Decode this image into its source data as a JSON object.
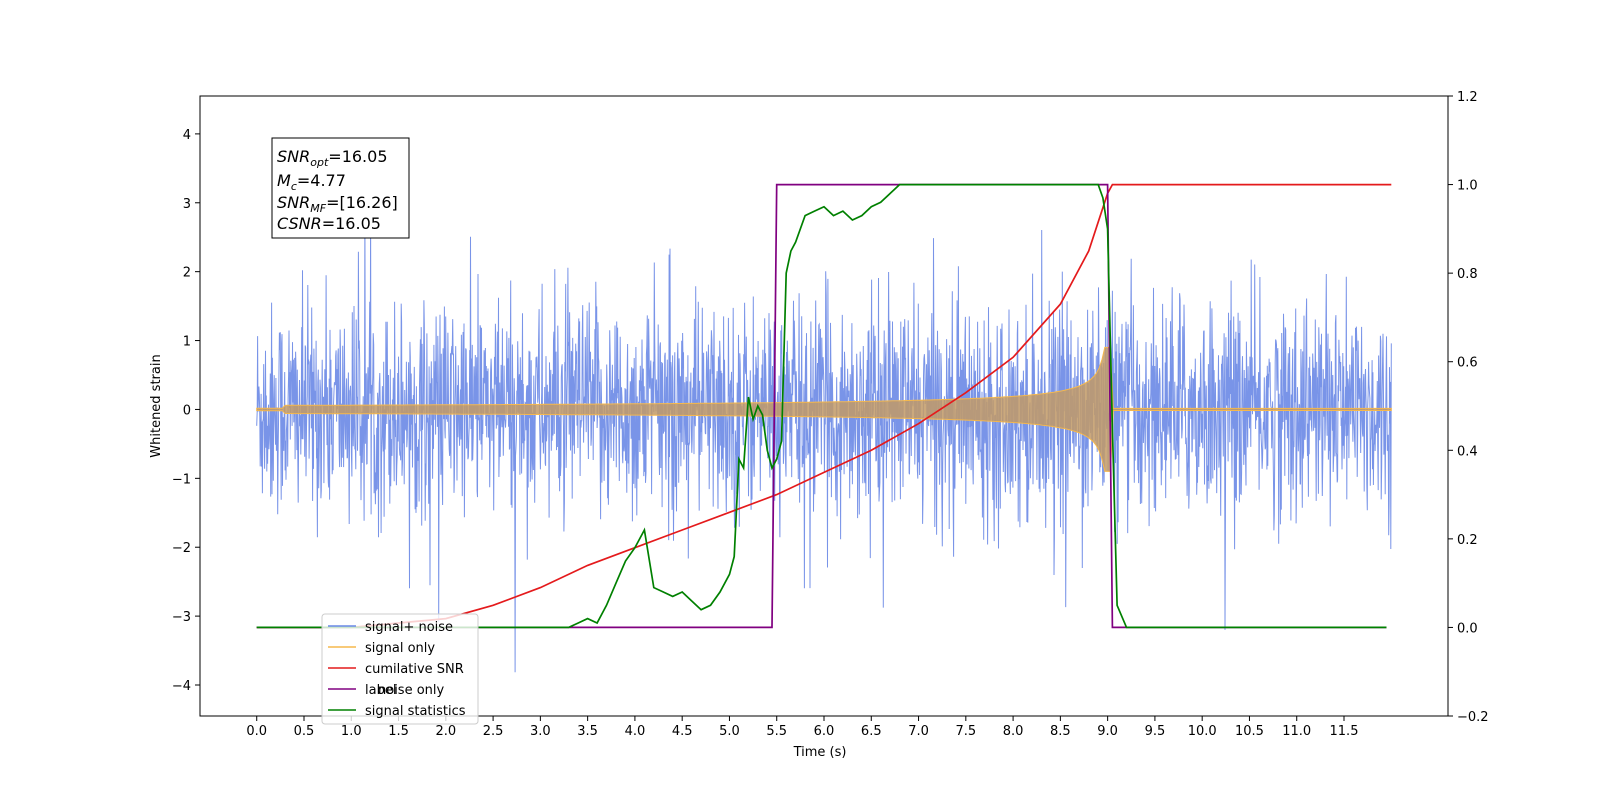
{
  "chart_data": {
    "type": "line",
    "xlabel": "Time (s)",
    "ylabel": "Whitened strain",
    "xlim": [
      -0.6,
      12.6
    ],
    "ylim": [
      -4.45,
      4.55
    ],
    "y2lim": [
      -0.2,
      1.2
    ],
    "x_ticks": [
      "0.0",
      "0.5",
      "1.0",
      "1.5",
      "2.0",
      "2.5",
      "3.0",
      "3.5",
      "4.0",
      "4.5",
      "5.0",
      "5.5",
      "6.0",
      "6.5",
      "7.0",
      "7.5",
      "8.0",
      "8.5",
      "9.0",
      "9.5",
      "10.0",
      "10.5",
      "11.0",
      "11.5"
    ],
    "y_ticks": [
      "4",
      "3",
      "2",
      "1",
      "0",
      "−1",
      "−2",
      "−3",
      "−4"
    ],
    "y2_ticks": [
      "1.2",
      "1.0",
      "0.8",
      "0.6",
      "0.4",
      "0.2",
      "0.0",
      "−0.2"
    ],
    "legend_placement": "lower-left",
    "annotation": {
      "snr_opt": {
        "main": "SNR",
        "sub": "opt",
        "value": "=16.05"
      },
      "mc": {
        "main": "M",
        "sub": "c",
        "value": "=4.77"
      },
      "snr_mf": {
        "main": "SNR",
        "sub": "MF",
        "value": "=[16.26]"
      },
      "csnr": {
        "main": "CSNR",
        "value": "=16.05"
      }
    },
    "series": [
      {
        "name": "signal+ noise",
        "color": "#6a88e6",
        "kind": "noise",
        "x_range": [
          0,
          12
        ],
        "sigma": 0.85
      },
      {
        "name": "signal only",
        "color": "#f5b84d",
        "kind": "chirp",
        "x_range": [
          0,
          12
        ],
        "merger": 9.0,
        "peak_amplitude": 0.9
      },
      {
        "name": "cumilative SNR",
        "color": "#e41a1c",
        "axis": "right",
        "x": [
          0.0,
          1.0,
          2.0,
          2.5,
          3.0,
          3.5,
          4.0,
          4.5,
          5.0,
          5.5,
          6.0,
          6.5,
          7.0,
          7.5,
          8.0,
          8.5,
          8.8,
          9.0,
          9.05,
          12.0
        ],
        "y": [
          0.0,
          0.0,
          0.02,
          0.05,
          0.09,
          0.14,
          0.18,
          0.22,
          0.26,
          0.3,
          0.35,
          0.4,
          0.46,
          0.53,
          0.61,
          0.73,
          0.85,
          0.98,
          1.0,
          1.0
        ]
      },
      {
        "name": "label",
        "color": "#800080",
        "axis": "right",
        "x": [
          0.0,
          5.45,
          5.5,
          9.0,
          9.05,
          11.95
        ],
        "y": [
          0.0,
          0.0,
          1.0,
          1.0,
          0.0,
          0.0
        ]
      },
      {
        "name": "noise only",
        "color": "#dddddd",
        "kind": "legend-only",
        "x": [],
        "y": []
      },
      {
        "name": "signal statistics",
        "color": "#008000",
        "axis": "right",
        "x": [
          0.0,
          3.3,
          3.4,
          3.5,
          3.6,
          3.7,
          3.8,
          3.9,
          4.0,
          4.1,
          4.2,
          4.3,
          4.4,
          4.5,
          4.6,
          4.7,
          4.8,
          4.9,
          5.0,
          5.05,
          5.1,
          5.15,
          5.2,
          5.25,
          5.3,
          5.35,
          5.4,
          5.45,
          5.5,
          5.55,
          5.6,
          5.65,
          5.7,
          5.8,
          5.9,
          6.0,
          6.1,
          6.2,
          6.3,
          6.4,
          6.5,
          6.6,
          6.7,
          6.8,
          6.9,
          7.0,
          7.5,
          8.0,
          8.5,
          8.85,
          8.9,
          8.95,
          9.0,
          9.05,
          9.1,
          9.2,
          11.95
        ],
        "y": [
          0.0,
          0.0,
          0.01,
          0.02,
          0.01,
          0.05,
          0.1,
          0.15,
          0.18,
          0.22,
          0.09,
          0.08,
          0.07,
          0.08,
          0.06,
          0.04,
          0.05,
          0.08,
          0.12,
          0.16,
          0.38,
          0.36,
          0.52,
          0.47,
          0.5,
          0.48,
          0.4,
          0.36,
          0.38,
          0.42,
          0.8,
          0.85,
          0.87,
          0.93,
          0.94,
          0.95,
          0.93,
          0.94,
          0.92,
          0.93,
          0.95,
          0.96,
          0.98,
          1.0,
          1.0,
          1.0,
          1.0,
          1.0,
          1.0,
          1.0,
          1.0,
          0.97,
          0.9,
          0.45,
          0.05,
          0.0,
          0.0
        ]
      }
    ]
  }
}
